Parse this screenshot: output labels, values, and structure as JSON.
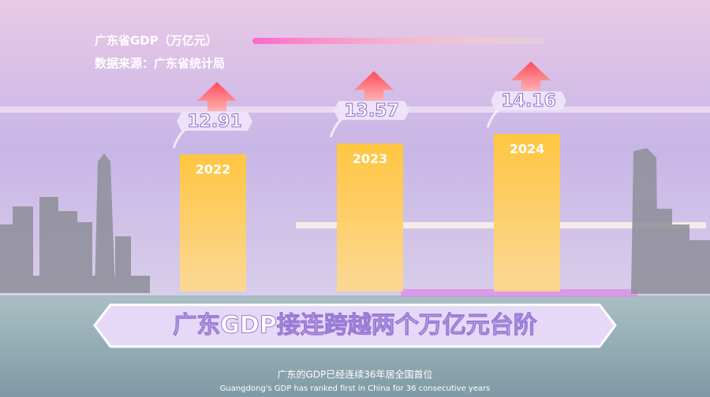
{
  "chart_data": {
    "type": "bar",
    "title": "广东省GDP（万亿元）",
    "subtitle": "数据来源：广东省统计局",
    "categories": [
      "2022",
      "2023",
      "2024"
    ],
    "values": [
      12.91,
      13.57,
      14.16
    ],
    "color": "#ffc23a",
    "headline": "广东GDP接连跨越两个万亿元台阶",
    "caption": "广东的GDP已经连续36年居全国首位",
    "caption_en": "Guangdong's GDP has ranked first in China for 36 consecutive years"
  }
}
